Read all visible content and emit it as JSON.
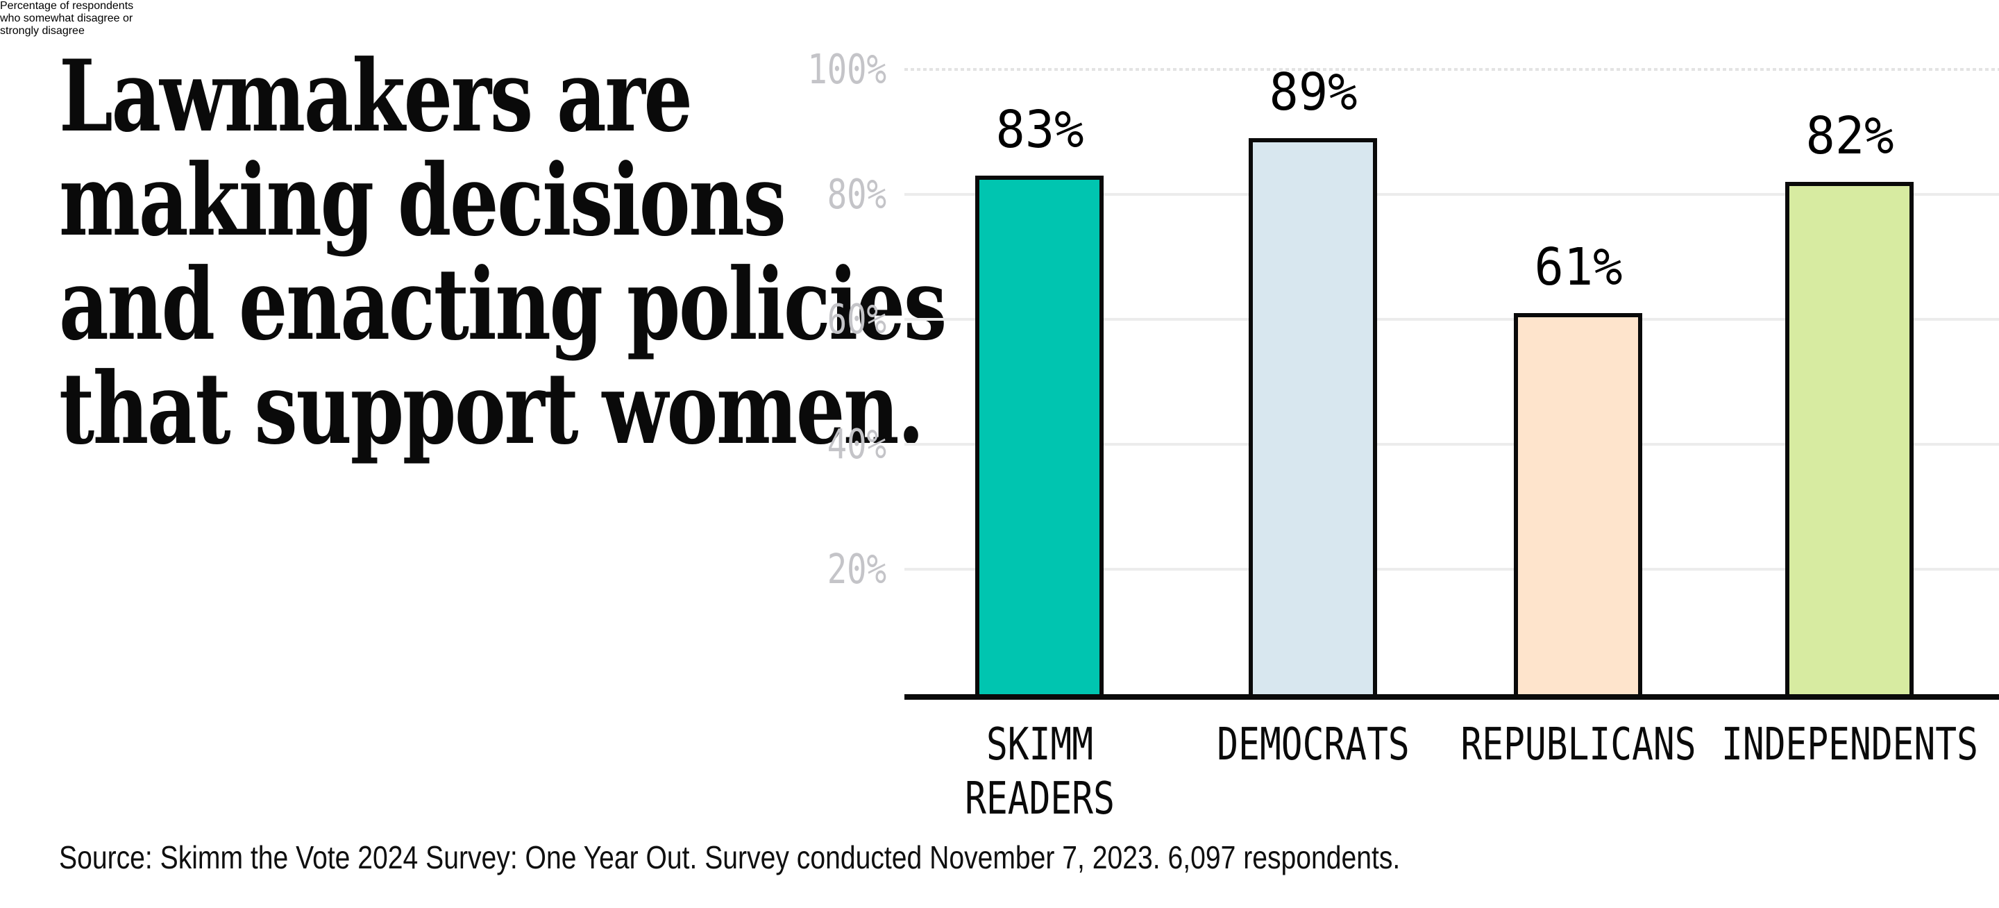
{
  "header": {
    "title_lines": [
      "Lawmakers are",
      "making decisions",
      "and enacting policies",
      "that support women."
    ],
    "subtitle_lines": [
      "Percentage of respondents",
      "who somewhat disagree or",
      "strongly disagree"
    ]
  },
  "footer": {
    "source": "Source: Skimm the Vote 2024 Survey: One Year Out. Survey conducted November 7, 2023. 6,097 respondents."
  },
  "chart_data": {
    "type": "bar",
    "title": "Lawmakers are making decisions and enacting policies that support women.",
    "subtitle": "Percentage of respondents who somewhat disagree or strongly disagree",
    "categories": [
      "SKIMM READERS",
      "DEMOCRATS",
      "REPUBLICANS",
      "INDEPENDENTS"
    ],
    "category_lines": [
      [
        "SKIMM",
        "READERS"
      ],
      [
        "DEMOCRATS"
      ],
      [
        "REPUBLICANS"
      ],
      [
        "INDEPENDENTS"
      ]
    ],
    "values": [
      83,
      89,
      61,
      82
    ],
    "value_labels": [
      "83%",
      "89%",
      "61%",
      "82%"
    ],
    "bar_colors": [
      "#00c5b0",
      "#d8e7ef",
      "#fee4cc",
      "#d7eba1"
    ],
    "bar_border_color": "#0a0a0a",
    "xlabel": "",
    "ylabel": "",
    "ylim": [
      0,
      100
    ],
    "y_ticks": [
      20,
      40,
      60,
      80,
      100
    ],
    "y_tick_labels": [
      "20%",
      "40%",
      "60%",
      "80%",
      "100%"
    ],
    "grid": true,
    "top_gridline_style": "dotted",
    "legend_position": "none",
    "colors": {
      "gridline": "#ececec",
      "axis": "#0a0a0a",
      "y_tick_text": "#c4c4c8",
      "value_text": "#000000",
      "background": "#ffffff"
    }
  }
}
